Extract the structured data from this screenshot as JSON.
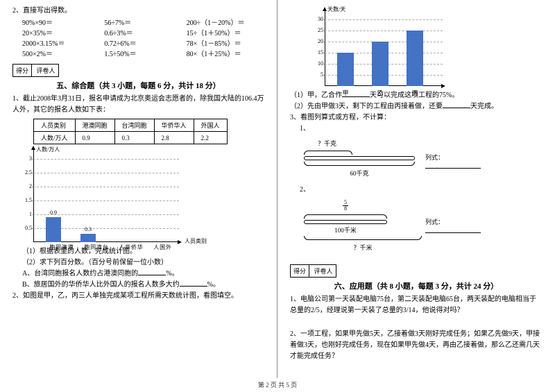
{
  "left": {
    "q2_title": "2、直接写出得数。",
    "eqs": [
      [
        "90%×90＝",
        "56÷7%＝",
        "200÷（1－20%）＝"
      ],
      [
        "20×35%＝",
        "0.6÷3%＝",
        "15÷（1＋50%）＝"
      ],
      [
        "2000×3.15%＝",
        "0.72÷6%＝",
        "78×（1－85%）＝"
      ],
      [
        "500×2%＝",
        "1.5÷50%＝",
        "80×（1＋25%）＝"
      ]
    ],
    "score_labels": [
      "得分",
      "评卷人"
    ],
    "section5_title": "五、综合题（共 3 小题，每题 6 分，共计 18 分）",
    "q1_text": "1、截止2008年3月31日，报名申请成为北京奥运会志愿者的，除我国大陆的106.4万人外，其它的报名人数如下表：",
    "table": {
      "headers": [
        "人员类别",
        "港澳同胞",
        "台湾同胞",
        "华侨华人",
        "外国人"
      ],
      "row_label": "人数/万人",
      "values": [
        "0.9",
        "0.3",
        "2.8",
        "2.2"
      ]
    },
    "chart1": {
      "y_label": "人数/万人",
      "x_label": "人员类别",
      "y_ticks": [
        "0.5",
        "1",
        "1.5",
        "2",
        "2.5",
        "3"
      ],
      "categories": [
        "港澳同胞",
        "台湾同胞",
        "华侨华人",
        "外国人"
      ],
      "values": [
        0.9,
        0.3,
        0,
        0
      ],
      "bar_labels": [
        "0.9",
        "0.3",
        "",
        ""
      ],
      "bar_color": "#4472c4",
      "unit_height": 20
    },
    "sub1": "（1）根据表里的人数，完成统计图。",
    "sub2": "（2）求下列百分数。（百分号前保留一位小数）",
    "subA": "A、台湾同胞报名人数约占港澳同胞的",
    "subA_end": "%。",
    "subB": "B、旅居国外的华侨华人比外国人的报名人数多大约",
    "subB_end": "%。",
    "q2_text": "2、如图是甲，乙，丙三人单独完成某项工程所需天数统计图，看图填空。"
  },
  "right": {
    "chart2": {
      "y_label": "天数/天",
      "y_ticks": [
        "5",
        "10",
        "15",
        "20",
        "25",
        "30"
      ],
      "categories": [
        "甲",
        "乙",
        "丙"
      ],
      "values": [
        15,
        20,
        25
      ],
      "bar_color": "#4472c4",
      "unit_height": 3.2
    },
    "r1": "（1）甲，乙合作",
    "r1_end": "天可以完成这项工程的75%。",
    "r2": "（2）先由甲做3天，剩下的工程由丙接着做，还要",
    "r2_end": "天完成。",
    "q3_title": "3、看图列算式或方程，不计算：",
    "diag1": {
      "top_label": "？千克",
      "formula_label": "列式：",
      "bottom_label": "60千克"
    },
    "diag2": {
      "top_label": "5/8",
      "top_num": "5",
      "top_den": "8",
      "formula_label": "列式：",
      "mid_label": "100千米",
      "bottom_label": "？千米"
    },
    "score_labels": [
      "得分",
      "评卷人"
    ],
    "section6_title": "六、应用题（共 8 小题，每题 3 分，共计 24 分）",
    "app1": "1、电脑公司第一天装配电脑75台，第二天装配电脑65台，两天装配的电脑相当于总量的2/5，经理说第一天装了总量的3/14，他说得对吗？",
    "app2": "2、一项工程，如果甲先做5天，乙接着做3天刚好完成任务；如果乙先做9天，甲接着做3天，也刚好完成任务，现在如果甲先做4天，再由乙接着做，那么乙还需几天才能完成任务？"
  },
  "footer": "第 2 页 共 5 页"
}
